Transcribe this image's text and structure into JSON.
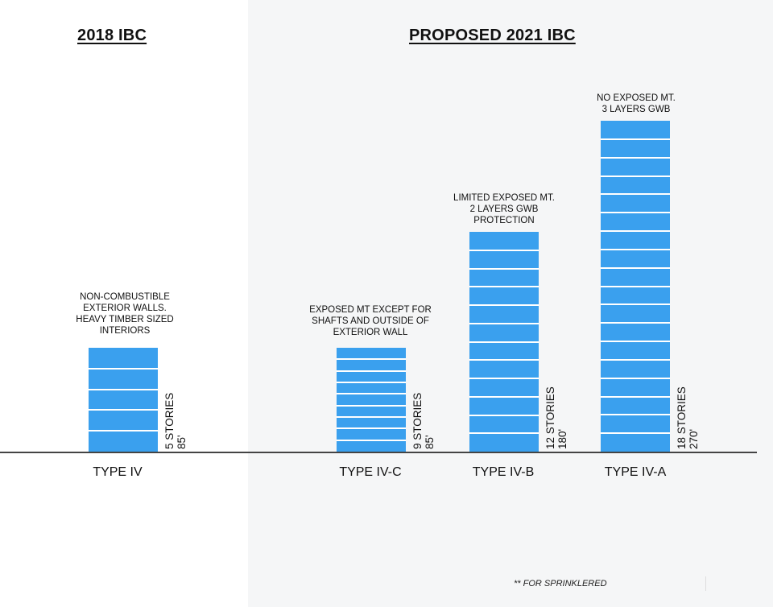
{
  "headings": {
    "left": "2018 IBC",
    "right": "PROPOSED 2021 IBC"
  },
  "colors": {
    "bar": "#3aa0ee",
    "floor_line": "#ffffff",
    "right_panel": "#f5f6f7"
  },
  "buildings": [
    {
      "type_label": "TYPE IV",
      "stories": 5,
      "stories_label": "5 STORIES",
      "height_label": "85'",
      "note": "NON-COMBUSTIBLE\nEXTERIOR WALLS.\nHEAVY TIMBER SIZED\nINTERIORS"
    },
    {
      "type_label": "TYPE IV-C",
      "stories": 9,
      "stories_label": "9 STORIES",
      "height_label": "85'",
      "note": "EXPOSED MT EXCEPT FOR\nSHAFTS AND OUTSIDE OF\nEXTERIOR WALL"
    },
    {
      "type_label": "TYPE IV-B",
      "stories": 12,
      "stories_label": "12 STORIES",
      "height_label": "180'",
      "note": "LIMITED EXPOSED MT.\n2 LAYERS GWB\nPROTECTION"
    },
    {
      "type_label": "TYPE IV-A",
      "stories": 18,
      "stories_label": "18 STORIES",
      "height_label": "270'",
      "note": "NO EXPOSED MT.\n3 LAYERS GWB"
    }
  ],
  "footnote": "** FOR SPRINKLERED"
}
